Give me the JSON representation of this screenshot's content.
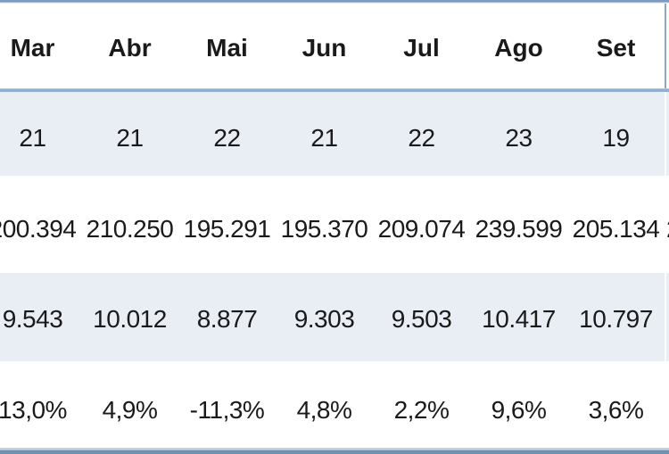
{
  "table": {
    "header": {
      "cells": [
        "Mar",
        "Abr",
        "Mai",
        "Jun",
        "Jul",
        "Ago",
        "Set"
      ],
      "partial_cell": ""
    },
    "rows": [
      {
        "cells": [
          "21",
          "21",
          "22",
          "21",
          "22",
          "23",
          "19"
        ],
        "partial_cell": ""
      },
      {
        "cells": [
          "200.394",
          "210.250",
          "195.291",
          "195.370",
          "209.074",
          "239.599",
          "205.134"
        ],
        "partial_cell": "2"
      },
      {
        "cells": [
          "9.543",
          "10.012",
          "8.877",
          "9.303",
          "9.503",
          "10.417",
          "10.797"
        ],
        "partial_cell": ""
      },
      {
        "cells": [
          "13,0%",
          "4,9%",
          "-11,3%",
          "4,8%",
          "2,2%",
          "9,6%",
          "3,6%"
        ],
        "partial_cell": ""
      }
    ]
  },
  "colors": {
    "band_row_bg": "#E9EDF4",
    "border_blue": "#8BA7C8",
    "separator_blue": "#92AECE",
    "bottom_band_blue": "#7291AE",
    "text": "#1a1a1a"
  },
  "chart_data": {
    "type": "table",
    "title": "",
    "columns": [
      "Mar",
      "Abr",
      "Mai",
      "Jun",
      "Jul",
      "Ago",
      "Set"
    ],
    "rows": [
      [
        "21",
        "21",
        "22",
        "21",
        "22",
        "23",
        "19"
      ],
      [
        "200.394",
        "210.250",
        "195.291",
        "195.370",
        "209.074",
        "239.599",
        "205.134"
      ],
      [
        "9.543",
        "10.012",
        "8.877",
        "9.303",
        "9.503",
        "10.417",
        "10.797"
      ],
      [
        "13,0%",
        "4,9%",
        "-11,3%",
        "4,8%",
        "2,2%",
        "9,6%",
        "3,6%"
      ]
    ],
    "layout_hints": {
      "banded_rows": true,
      "cropped_left_column_partial": true,
      "cropped_right_column_partial": true,
      "locale": "pt-BR month abbreviations and number formats"
    }
  }
}
